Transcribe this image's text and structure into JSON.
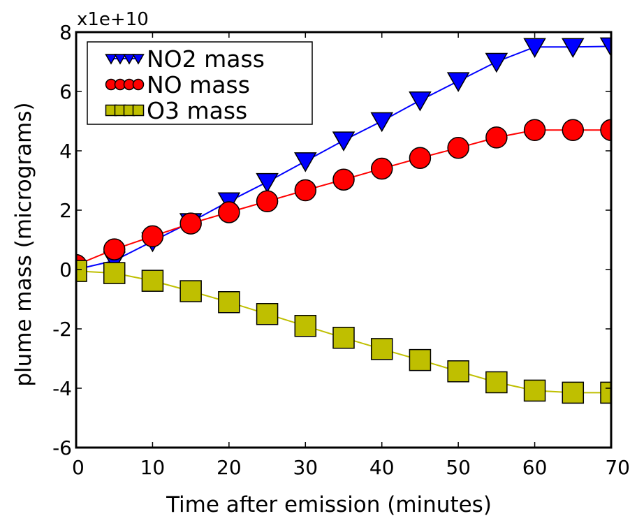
{
  "chart_data": {
    "type": "line",
    "title": "",
    "xlabel": "Time after emission (minutes)",
    "ylabel": "plume mass (micrograms)",
    "y_scale_note": "x1e+10",
    "xlim": [
      0,
      70
    ],
    "ylim": [
      -6,
      8
    ],
    "x_ticks": [
      "0",
      "10",
      "20",
      "30",
      "40",
      "50",
      "60",
      "70"
    ],
    "y_ticks": [
      "-6",
      "-4",
      "-2",
      "0",
      "2",
      "4",
      "6",
      "8"
    ],
    "x_tick_values": [
      0,
      10,
      20,
      30,
      40,
      50,
      60,
      70
    ],
    "y_tick_values": [
      -6,
      -4,
      -2,
      0,
      2,
      4,
      6,
      8
    ],
    "grid": false,
    "legend_position": "top-left",
    "x": [
      0,
      5,
      10,
      15,
      20,
      25,
      30,
      35,
      40,
      45,
      50,
      55,
      60,
      65,
      70
    ],
    "series": [
      {
        "name": "NO2 mass",
        "marker": "triangle-down",
        "color": "#0000ff",
        "values": [
          0.0,
          0.3,
          0.95,
          1.6,
          2.3,
          2.95,
          3.65,
          4.35,
          5.0,
          5.7,
          6.35,
          7.0,
          7.5,
          7.5,
          7.52
        ]
      },
      {
        "name": "NO mass",
        "marker": "circle",
        "color": "#ff0000",
        "values": [
          0.15,
          0.68,
          1.12,
          1.55,
          1.93,
          2.3,
          2.67,
          3.03,
          3.4,
          3.76,
          4.1,
          4.45,
          4.7,
          4.7,
          4.7
        ]
      },
      {
        "name": "O3 mass",
        "marker": "square",
        "color": "#bfbf00",
        "values": [
          -0.05,
          -0.12,
          -0.38,
          -0.73,
          -1.1,
          -1.5,
          -1.9,
          -2.3,
          -2.68,
          -3.05,
          -3.43,
          -3.8,
          -4.08,
          -4.15,
          -4.15
        ]
      }
    ]
  }
}
